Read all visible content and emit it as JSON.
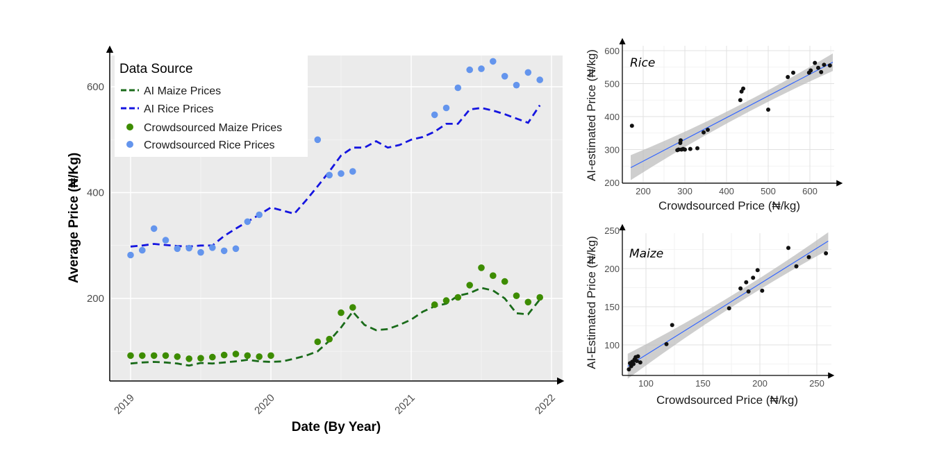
{
  "chart_data": [
    {
      "type": "line",
      "title": "",
      "xlabel": "Date (By Year)",
      "ylabel": "Average Price (₦/Kg)",
      "x_ticks": [
        "2019",
        "2020",
        "2021",
        "2022"
      ],
      "y_ticks": [
        200,
        400,
        600
      ],
      "xlim": [
        2019,
        2022
      ],
      "ylim": [
        40,
        670
      ],
      "grid": true,
      "legend": {
        "title": "Data Source",
        "placement": "top-left",
        "entries": [
          "AI Maize Prices",
          "AI Rice Prices",
          "Crowdsourced Maize Prices",
          "Crowdsourced Rice Prices"
        ]
      },
      "colors": {
        "ai_maize": "#1a6b1a",
        "ai_rice": "#1515e0",
        "crowd_maize": "#3d8c00",
        "crowd_rice": "#6495ed",
        "panel_bg": "#ebebeb"
      },
      "series": [
        {
          "name": "AI Maize Prices",
          "style": "dashed",
          "x": [
            2019.0,
            2019.083,
            2019.167,
            2019.25,
            2019.333,
            2019.417,
            2019.5,
            2019.583,
            2019.667,
            2019.75,
            2019.833,
            2019.917,
            2020.0,
            2020.083,
            2020.167,
            2020.25,
            2020.333,
            2020.417,
            2020.5,
            2020.583,
            2020.667,
            2020.75,
            2020.833,
            2020.917,
            2021.0,
            2021.083,
            2021.167,
            2021.25,
            2021.333,
            2021.417,
            2021.5,
            2021.583,
            2021.667,
            2021.75,
            2021.833,
            2021.917
          ],
          "y": [
            77,
            79,
            80,
            79,
            77,
            73,
            78,
            77,
            79,
            81,
            84,
            81,
            80,
            81,
            86,
            92,
            100,
            120,
            145,
            175,
            150,
            140,
            142,
            150,
            160,
            175,
            185,
            190,
            205,
            210,
            220,
            215,
            200,
            172,
            170,
            198
          ]
        },
        {
          "name": "AI Rice Prices",
          "style": "dashed",
          "x": [
            2019.0,
            2019.083,
            2019.167,
            2019.25,
            2019.333,
            2019.417,
            2019.5,
            2019.583,
            2019.667,
            2019.75,
            2019.833,
            2019.917,
            2020.0,
            2020.083,
            2020.167,
            2020.25,
            2020.333,
            2020.417,
            2020.5,
            2020.583,
            2020.667,
            2020.75,
            2020.833,
            2020.917,
            2021.0,
            2021.083,
            2021.167,
            2021.25,
            2021.333,
            2021.417,
            2021.5,
            2021.583,
            2021.667,
            2021.75,
            2021.833,
            2021.917
          ],
          "y": [
            298,
            300,
            303,
            301,
            299,
            298,
            300,
            300,
            318,
            332,
            345,
            358,
            372,
            366,
            360,
            385,
            412,
            440,
            470,
            485,
            485,
            497,
            485,
            490,
            500,
            505,
            515,
            530,
            530,
            557,
            560,
            555,
            548,
            540,
            532,
            565
          ]
        },
        {
          "name": "Crowdsourced Maize Prices",
          "style": "points",
          "x": [
            2019.0,
            2019.083,
            2019.167,
            2019.25,
            2019.333,
            2019.417,
            2019.5,
            2019.583,
            2019.667,
            2019.75,
            2019.833,
            2019.917,
            2020.0,
            2020.333,
            2020.417,
            2020.5,
            2020.583,
            2021.167,
            2021.25,
            2021.333,
            2021.417,
            2021.5,
            2021.583,
            2021.667,
            2021.75,
            2021.833,
            2021.917
          ],
          "y": [
            92,
            92,
            92,
            92,
            90,
            86,
            87,
            89,
            93,
            95,
            92,
            90,
            92,
            118,
            123,
            173,
            183,
            188,
            196,
            202,
            225,
            258,
            243,
            232,
            205,
            193,
            202
          ]
        },
        {
          "name": "Crowdsourced Rice Prices",
          "style": "points",
          "x": [
            2019.0,
            2019.083,
            2019.167,
            2019.25,
            2019.333,
            2019.417,
            2019.5,
            2019.583,
            2019.667,
            2019.75,
            2019.833,
            2019.917,
            2020.333,
            2020.417,
            2020.5,
            2020.583,
            2021.167,
            2021.25,
            2021.333,
            2021.417,
            2021.5,
            2021.583,
            2021.667,
            2021.75,
            2021.833,
            2021.917
          ],
          "y": [
            282,
            291,
            332,
            310,
            294,
            295,
            287,
            296,
            290,
            294,
            345,
            358,
            500,
            433,
            436,
            440,
            547,
            560,
            598,
            632,
            634,
            648,
            620,
            603,
            627,
            613
          ]
        }
      ]
    },
    {
      "type": "scatter",
      "panel_label": "Rice",
      "title": "",
      "xlabel": "Crowdsourced Price (₦/kg)",
      "ylabel": "AI-estimated Price (₦/kg)",
      "x_ticks": [
        200,
        300,
        400,
        500,
        600
      ],
      "y_ticks": [
        200,
        300,
        400,
        500,
        600
      ],
      "xlim": [
        150,
        660
      ],
      "ylim": [
        200,
        600
      ],
      "grid": true,
      "regression": {
        "x": [
          170,
          655
        ],
        "y": [
          245,
          565
        ],
        "band": true
      },
      "x": [
        173,
        282,
        285,
        289,
        290,
        292,
        296,
        300,
        313,
        330,
        345,
        355,
        433,
        436,
        440,
        500,
        547,
        560,
        598,
        602,
        612,
        620,
        627,
        634,
        648
      ],
      "y": [
        372,
        298,
        300,
        320,
        328,
        300,
        302,
        300,
        302,
        304,
        352,
        360,
        450,
        476,
        485,
        421,
        520,
        533,
        533,
        540,
        563,
        548,
        535,
        557,
        555
      ]
    },
    {
      "type": "scatter",
      "panel_label": "Maize",
      "title": "",
      "xlabel": "Crowdsourced Price (₦/kg)",
      "ylabel": "AI-Estimated Price (₦/kg)",
      "x_ticks": [
        100,
        150,
        200,
        250
      ],
      "y_ticks": [
        100,
        150,
        200,
        250
      ],
      "xlim": [
        80,
        262
      ],
      "ylim": [
        60,
        250
      ],
      "grid": true,
      "regression": {
        "x": [
          84,
          260
        ],
        "y": [
          72,
          236
        ],
        "band": true
      },
      "x": [
        85,
        86,
        87,
        88,
        89,
        90,
        90,
        91,
        92,
        93,
        95,
        118,
        123,
        173,
        183,
        188,
        190,
        194,
        198,
        202,
        225,
        232,
        243,
        258
      ],
      "y": [
        68,
        76,
        72,
        78,
        75,
        80,
        81,
        84,
        79,
        85,
        77,
        101,
        126,
        148,
        174,
        182,
        170,
        188,
        198,
        171,
        227,
        203,
        215,
        220
      ]
    }
  ]
}
